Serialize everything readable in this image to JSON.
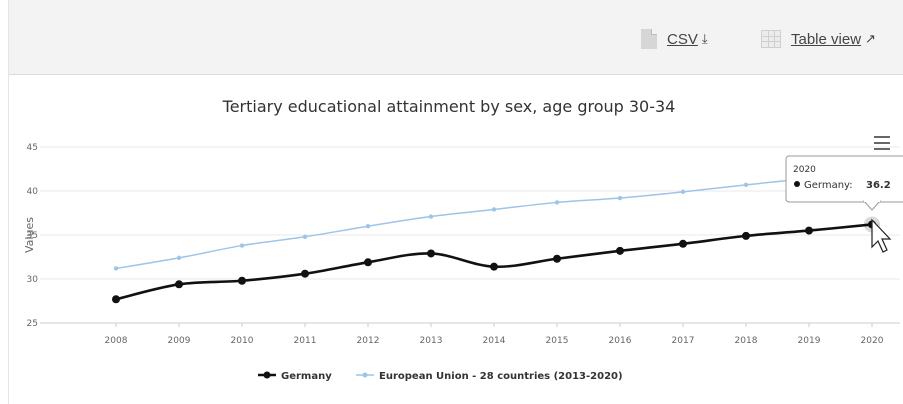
{
  "toolbar": {
    "csv_label": "CSV",
    "table_view_label": "Table view",
    "download_icon": "download-icon",
    "external_icon": "external-link-icon"
  },
  "tooltip": {
    "year": "2020",
    "series": "Germany:",
    "value": "36.2"
  },
  "colors": {
    "germany": "#111111",
    "eu": "#9ec4e8",
    "grid": "#e8e8e8"
  },
  "chart_data": {
    "type": "line",
    "title": "Tertiary educational attainment by sex, age group 30-34",
    "xlabel": "",
    "ylabel": "Values",
    "x": [
      "2008",
      "2009",
      "2010",
      "2011",
      "2012",
      "2013",
      "2014",
      "2015",
      "2016",
      "2017",
      "2018",
      "2019",
      "2020"
    ],
    "ylim": [
      25,
      45
    ],
    "yticks": [
      25,
      30,
      35,
      40,
      45
    ],
    "grid": true,
    "legend_position": "bottom",
    "series": [
      {
        "name": "Germany",
        "values": [
          27.7,
          29.4,
          29.8,
          30.6,
          31.9,
          32.9,
          31.4,
          32.3,
          33.2,
          34.0,
          34.9,
          35.5,
          36.2
        ]
      },
      {
        "name": "European Union - 28 countries (2013-2020)",
        "values": [
          31.2,
          32.4,
          33.8,
          34.8,
          36.0,
          37.1,
          37.9,
          38.7,
          39.2,
          39.9,
          40.7,
          41.4,
          41.9
        ]
      }
    ]
  }
}
